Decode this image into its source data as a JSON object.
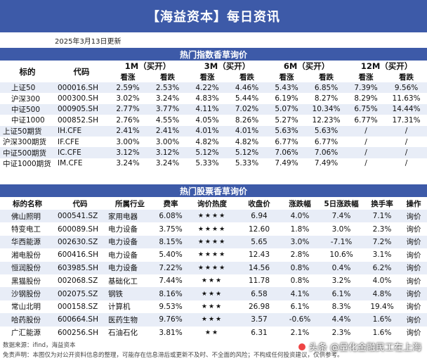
{
  "header": {
    "title": "【海益资本】每日资讯"
  },
  "date": "2025年3月13日更新",
  "index_section": {
    "title": "热门指数香草询价",
    "col_name": "标的",
    "col_code": "代码",
    "periods": [
      "1M（买开）",
      "3M（买开）",
      "6M（买开）",
      "12M（买开）"
    ],
    "sub_up": "看涨",
    "sub_down": "看跌",
    "rows": [
      {
        "name": "上证50",
        "code": "000016.SH",
        "v": [
          "2.59%",
          "2.53%",
          "4.22%",
          "4.46%",
          "5.43%",
          "6.85%",
          "7.39%",
          "9.56%"
        ]
      },
      {
        "name": "沪深300",
        "code": "000300.SH",
        "v": [
          "3.02%",
          "3.24%",
          "4.83%",
          "5.44%",
          "6.19%",
          "8.27%",
          "8.29%",
          "11.63%"
        ]
      },
      {
        "name": "中证500",
        "code": "000905.SH",
        "v": [
          "2.77%",
          "3.77%",
          "4.11%",
          "7.02%",
          "5.07%",
          "10.34%",
          "6.75%",
          "14.44%"
        ]
      },
      {
        "name": "中证1000",
        "code": "000852.SH",
        "v": [
          "2.76%",
          "4.55%",
          "4.05%",
          "8.26%",
          "5.27%",
          "12.23%",
          "6.77%",
          "17.31%"
        ]
      },
      {
        "name": "上证50期货",
        "code": "IH.CFE",
        "fut": true,
        "v": [
          "2.41%",
          "2.41%",
          "4.01%",
          "4.01%",
          "5.63%",
          "5.63%",
          "/",
          "/"
        ]
      },
      {
        "name": "沪深300期货",
        "code": "IF.CFE",
        "fut": true,
        "v": [
          "3.00%",
          "3.00%",
          "4.82%",
          "4.82%",
          "6.77%",
          "6.77%",
          "/",
          "/"
        ]
      },
      {
        "name": "中证500期货",
        "code": "IC.CFE",
        "fut": true,
        "v": [
          "3.12%",
          "3.12%",
          "5.12%",
          "5.12%",
          "7.06%",
          "7.06%",
          "/",
          "/"
        ]
      },
      {
        "name": "中证1000期货",
        "code": "IM.CFE",
        "fut": true,
        "v": [
          "3.24%",
          "3.24%",
          "5.33%",
          "5.33%",
          "7.49%",
          "7.49%",
          "/",
          "/"
        ]
      }
    ]
  },
  "stock_section": {
    "title": "热门股票香草询价",
    "headers": [
      "标的名称",
      "代码",
      "所属行业",
      "费率",
      "询价热度",
      "收盘价",
      "涨跌幅",
      "5日涨跌幅",
      "换手率",
      "操作"
    ],
    "rows": [
      {
        "name": "佛山照明",
        "code": "000541.SZ",
        "ind": "家用电器",
        "fee": "6.08%",
        "heat": "★★★★",
        "close": "6.94",
        "chg": "4.0%",
        "chg5": "7.4%",
        "turn": "7.1%",
        "op": "询价"
      },
      {
        "name": "特变电工",
        "code": "600089.SH",
        "ind": "电力设备",
        "fee": "3.75%",
        "heat": "★★★★",
        "close": "12.60",
        "chg": "1.8%",
        "chg5": "3.0%",
        "turn": "2.3%",
        "op": "询价"
      },
      {
        "name": "华西能源",
        "code": "002630.SZ",
        "ind": "电力设备",
        "fee": "8.15%",
        "heat": "★★★★",
        "close": "5.65",
        "chg": "3.0%",
        "chg5": "-7.1%",
        "turn": "7.2%",
        "op": "询价"
      },
      {
        "name": "湘电股份",
        "code": "600416.SH",
        "ind": "电力设备",
        "fee": "5.40%",
        "heat": "★★★★",
        "close": "12.43",
        "chg": "2.8%",
        "chg5": "10.6%",
        "turn": "3.1%",
        "op": "询价"
      },
      {
        "name": "恒润股份",
        "code": "603985.SH",
        "ind": "电力设备",
        "fee": "7.22%",
        "heat": "★★★★",
        "close": "14.56",
        "chg": "0.8%",
        "chg5": "0.4%",
        "turn": "6.2%",
        "op": "询价"
      },
      {
        "name": "黑猫股份",
        "code": "002068.SZ",
        "ind": "基础化工",
        "fee": "7.44%",
        "heat": "★★★",
        "close": "11.78",
        "chg": "0.8%",
        "chg5": "3.2%",
        "turn": "4.0%",
        "op": "询价"
      },
      {
        "name": "沙钢股份",
        "code": "002075.SZ",
        "ind": "钢铁",
        "fee": "8.16%",
        "heat": "★★★",
        "close": "6.58",
        "chg": "4.1%",
        "chg5": "6.1%",
        "turn": "4.8%",
        "op": "询价"
      },
      {
        "name": "常山北明",
        "code": "000158.SZ",
        "ind": "计算机",
        "fee": "9.53%",
        "heat": "★★★",
        "close": "26.98",
        "chg": "6.1%",
        "chg5": "8.3%",
        "turn": "19.4%",
        "op": "询价"
      },
      {
        "name": "哈药股份",
        "code": "600664.SH",
        "ind": "医药生物",
        "fee": "9.76%",
        "heat": "★★★",
        "close": "3.57",
        "chg": "-0.6%",
        "chg5": "4.4%",
        "turn": "1.6%",
        "op": "询价"
      },
      {
        "name": "广汇能源",
        "code": "600256.SH",
        "ind": "石油石化",
        "fee": "3.81%",
        "heat": "★★",
        "close": "6.31",
        "chg": "2.1%",
        "chg5": "2.3%",
        "turn": "1.6%",
        "op": "询价"
      }
    ]
  },
  "footer": {
    "source": "数据来源：ifind，海益资本",
    "disclaimer": "免责声明：本图仅为对公开资料信息的整理，可能存在信息滞后或更新不及时、不全面的风险；不构成任何投资建议，仅供参考。"
  },
  "watermark": {
    "text": "头条 @量化金融民工在上海"
  }
}
